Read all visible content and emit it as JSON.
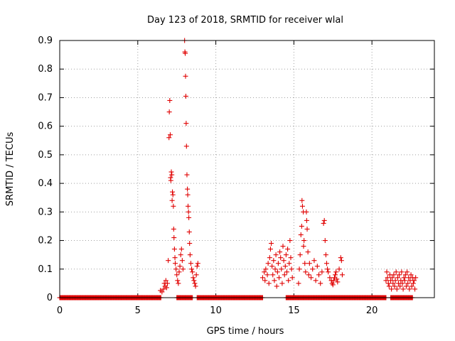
{
  "chart_data": {
    "type": "scatter",
    "title": "Day 123 of 2018, SRMTID for receiver wlal",
    "xlabel": "GPS time / hours",
    "ylabel": "SRMTID / TECUs",
    "xlim": [
      0,
      24
    ],
    "ylim": [
      0,
      0.9
    ],
    "xticks": [
      0,
      5,
      10,
      15,
      20
    ],
    "yticks": [
      0,
      0.1,
      0.2,
      0.3,
      0.4,
      0.5,
      0.6,
      0.7,
      0.8,
      0.9
    ],
    "grid": true,
    "marker": "+",
    "color": "#e00000",
    "series": [
      {
        "name": "SRMTID",
        "points": [
          [
            6.45,
            0.025
          ],
          [
            6.55,
            0.02
          ],
          [
            6.65,
            0.03
          ],
          [
            6.7,
            0.05
          ],
          [
            6.75,
            0.04
          ],
          [
            6.8,
            0.06
          ],
          [
            6.85,
            0.035
          ],
          [
            6.9,
            0.05
          ],
          [
            6.95,
            0.13
          ],
          [
            7.0,
            0.56
          ],
          [
            7.02,
            0.65
          ],
          [
            7.05,
            0.69
          ],
          [
            7.08,
            0.57
          ],
          [
            7.1,
            0.42
          ],
          [
            7.12,
            0.41
          ],
          [
            7.15,
            0.44
          ],
          [
            7.18,
            0.43
          ],
          [
            7.2,
            0.34
          ],
          [
            7.22,
            0.37
          ],
          [
            7.25,
            0.36
          ],
          [
            7.28,
            0.32
          ],
          [
            7.3,
            0.24
          ],
          [
            7.32,
            0.21
          ],
          [
            7.35,
            0.17
          ],
          [
            7.38,
            0.14
          ],
          [
            7.4,
            0.12
          ],
          [
            7.45,
            0.1
          ],
          [
            7.5,
            0.08
          ],
          [
            7.55,
            0.06
          ],
          [
            7.6,
            0.05
          ],
          [
            7.65,
            0.09
          ],
          [
            7.7,
            0.11
          ],
          [
            7.75,
            0.15
          ],
          [
            7.8,
            0.17
          ],
          [
            7.85,
            0.13
          ],
          [
            7.9,
            0.1
          ],
          [
            8.0,
            0.9
          ],
          [
            8.02,
            0.86
          ],
          [
            8.04,
            0.855
          ],
          [
            8.06,
            0.775
          ],
          [
            8.08,
            0.705
          ],
          [
            8.1,
            0.61
          ],
          [
            8.12,
            0.53
          ],
          [
            8.15,
            0.43
          ],
          [
            8.18,
            0.38
          ],
          [
            8.2,
            0.36
          ],
          [
            8.22,
            0.32
          ],
          [
            8.25,
            0.3
          ],
          [
            8.27,
            0.28
          ],
          [
            8.3,
            0.23
          ],
          [
            8.32,
            0.19
          ],
          [
            8.35,
            0.15
          ],
          [
            8.4,
            0.12
          ],
          [
            8.45,
            0.1
          ],
          [
            8.5,
            0.09
          ],
          [
            8.55,
            0.07
          ],
          [
            8.6,
            0.06
          ],
          [
            8.65,
            0.05
          ],
          [
            8.7,
            0.04
          ],
          [
            8.75,
            0.08
          ],
          [
            8.8,
            0.11
          ],
          [
            8.85,
            0.12
          ],
          [
            13.0,
            0.07
          ],
          [
            13.1,
            0.09
          ],
          [
            13.15,
            0.06
          ],
          [
            13.2,
            0.1
          ],
          [
            13.3,
            0.08
          ],
          [
            13.35,
            0.12
          ],
          [
            13.4,
            0.05
          ],
          [
            13.45,
            0.14
          ],
          [
            13.5,
            0.17
          ],
          [
            13.55,
            0.19
          ],
          [
            13.6,
            0.11
          ],
          [
            13.65,
            0.08
          ],
          [
            13.7,
            0.13
          ],
          [
            13.75,
            0.06
          ],
          [
            13.8,
            0.1
          ],
          [
            13.85,
            0.15
          ],
          [
            13.9,
            0.04
          ],
          [
            13.95,
            0.09
          ],
          [
            14.0,
            0.12
          ],
          [
            14.05,
            0.07
          ],
          [
            14.1,
            0.16
          ],
          [
            14.15,
            0.14
          ],
          [
            14.2,
            0.1
          ],
          [
            14.25,
            0.05
          ],
          [
            14.3,
            0.18
          ],
          [
            14.35,
            0.13
          ],
          [
            14.4,
            0.08
          ],
          [
            14.45,
            0.11
          ],
          [
            14.5,
            0.15
          ],
          [
            14.55,
            0.09
          ],
          [
            14.6,
            0.17
          ],
          [
            14.65,
            0.06
          ],
          [
            14.7,
            0.12
          ],
          [
            14.75,
            0.2
          ],
          [
            14.8,
            0.14
          ],
          [
            14.85,
            0.1
          ],
          [
            14.9,
            0.07
          ],
          [
            15.3,
            0.05
          ],
          [
            15.35,
            0.1
          ],
          [
            15.4,
            0.15
          ],
          [
            15.45,
            0.22
          ],
          [
            15.5,
            0.25
          ],
          [
            15.52,
            0.34
          ],
          [
            15.55,
            0.32
          ],
          [
            15.6,
            0.3
          ],
          [
            15.62,
            0.18
          ],
          [
            15.65,
            0.2
          ],
          [
            15.7,
            0.12
          ],
          [
            15.75,
            0.09
          ],
          [
            15.8,
            0.3
          ],
          [
            15.82,
            0.27
          ],
          [
            15.85,
            0.24
          ],
          [
            15.9,
            0.16
          ],
          [
            15.95,
            0.08
          ],
          [
            16.0,
            0.12
          ],
          [
            16.1,
            0.07
          ],
          [
            16.2,
            0.1
          ],
          [
            16.3,
            0.13
          ],
          [
            16.4,
            0.06
          ],
          [
            16.5,
            0.11
          ],
          [
            16.6,
            0.08
          ],
          [
            16.7,
            0.05
          ],
          [
            16.8,
            0.09
          ],
          [
            16.9,
            0.26
          ],
          [
            16.95,
            0.27
          ],
          [
            17.0,
            0.2
          ],
          [
            17.05,
            0.15
          ],
          [
            17.1,
            0.12
          ],
          [
            17.15,
            0.1
          ],
          [
            17.2,
            0.09
          ],
          [
            17.3,
            0.07
          ],
          [
            17.4,
            0.06
          ],
          [
            17.45,
            0.05
          ],
          [
            17.5,
            0.045
          ],
          [
            17.55,
            0.06
          ],
          [
            17.6,
            0.07
          ],
          [
            17.65,
            0.08
          ],
          [
            17.7,
            0.09
          ],
          [
            17.75,
            0.065
          ],
          [
            17.8,
            0.055
          ],
          [
            17.9,
            0.1
          ],
          [
            18.0,
            0.14
          ],
          [
            18.05,
            0.13
          ],
          [
            18.1,
            0.08
          ],
          [
            20.9,
            0.06
          ],
          [
            20.95,
            0.09
          ],
          [
            21.0,
            0.07
          ],
          [
            21.05,
            0.05
          ],
          [
            21.1,
            0.04
          ],
          [
            21.15,
            0.08
          ],
          [
            21.2,
            0.06
          ],
          [
            21.25,
            0.03
          ],
          [
            21.3,
            0.07
          ],
          [
            21.35,
            0.05
          ],
          [
            21.4,
            0.08
          ],
          [
            21.45,
            0.04
          ],
          [
            21.5,
            0.06
          ],
          [
            21.55,
            0.09
          ],
          [
            21.6,
            0.03
          ],
          [
            21.65,
            0.07
          ],
          [
            21.7,
            0.05
          ],
          [
            21.75,
            0.08
          ],
          [
            21.8,
            0.04
          ],
          [
            21.85,
            0.06
          ],
          [
            21.9,
            0.09
          ],
          [
            21.95,
            0.05
          ],
          [
            22.0,
            0.03
          ],
          [
            22.05,
            0.07
          ],
          [
            22.1,
            0.06
          ],
          [
            22.15,
            0.08
          ],
          [
            22.2,
            0.04
          ],
          [
            22.25,
            0.09
          ],
          [
            22.3,
            0.05
          ],
          [
            22.35,
            0.07
          ],
          [
            22.4,
            0.03
          ],
          [
            22.45,
            0.06
          ],
          [
            22.5,
            0.08
          ],
          [
            22.55,
            0.04
          ],
          [
            22.6,
            0.07
          ],
          [
            22.65,
            0.05
          ],
          [
            22.7,
            0.06
          ],
          [
            22.75,
            0.03
          ],
          [
            22.8,
            0.07
          ]
        ],
        "baseline_zero_intervals": [
          [
            0,
            6.5
          ],
          [
            7.5,
            8.5
          ],
          [
            8.8,
            13.0
          ],
          [
            14.5,
            20.9
          ],
          [
            21.2,
            22.6
          ]
        ]
      }
    ]
  }
}
